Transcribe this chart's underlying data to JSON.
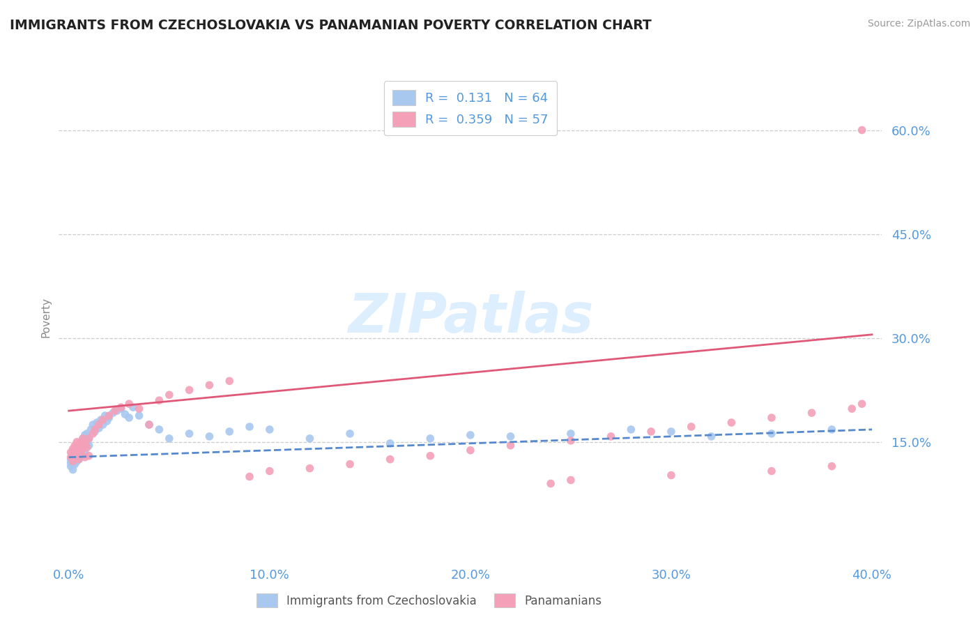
{
  "title": "IMMIGRANTS FROM CZECHOSLOVAKIA VS PANAMANIAN POVERTY CORRELATION CHART",
  "source": "Source: ZipAtlas.com",
  "ylabel": "Poverty",
  "xlabel": "",
  "xlim": [
    -0.005,
    0.405
  ],
  "ylim": [
    -0.02,
    0.68
  ],
  "yticks": [
    0.15,
    0.3,
    0.45,
    0.6
  ],
  "ytick_labels": [
    "15.0%",
    "30.0%",
    "45.0%",
    "60.0%"
  ],
  "xticks": [
    0.0,
    0.1,
    0.2,
    0.3,
    0.4
  ],
  "xtick_labels": [
    "0.0%",
    "10.0%",
    "20.0%",
    "30.0%",
    "40.0%"
  ],
  "series1_label": "Immigrants from Czechoslovakia",
  "series1_R": "0.131",
  "series1_N": "64",
  "series1_color": "#a8c8f0",
  "series1_line_color": "#5588cc",
  "series2_label": "Panamanians",
  "series2_R": "0.359",
  "series2_N": "57",
  "series2_color": "#f4a0b8",
  "series2_line_color": "#e05878",
  "background_color": "#ffffff",
  "grid_color": "#cccccc",
  "title_color": "#222222",
  "axis_color": "#5599dd",
  "watermark": "ZIPatlas",
  "watermark_color": "#ddeeff",
  "scatter1_x": [
    0.001,
    0.001,
    0.001,
    0.002,
    0.002,
    0.002,
    0.002,
    0.003,
    0.003,
    0.003,
    0.003,
    0.004,
    0.004,
    0.004,
    0.005,
    0.005,
    0.005,
    0.006,
    0.006,
    0.007,
    0.007,
    0.008,
    0.008,
    0.009,
    0.009,
    0.01,
    0.01,
    0.011,
    0.012,
    0.013,
    0.014,
    0.015,
    0.016,
    0.017,
    0.018,
    0.019,
    0.02,
    0.022,
    0.024,
    0.026,
    0.028,
    0.03,
    0.032,
    0.035,
    0.04,
    0.045,
    0.05,
    0.06,
    0.07,
    0.08,
    0.09,
    0.1,
    0.12,
    0.14,
    0.16,
    0.18,
    0.2,
    0.22,
    0.25,
    0.28,
    0.3,
    0.32,
    0.35,
    0.38
  ],
  "scatter1_y": [
    0.12,
    0.125,
    0.115,
    0.118,
    0.122,
    0.13,
    0.11,
    0.125,
    0.132,
    0.118,
    0.14,
    0.128,
    0.135,
    0.122,
    0.145,
    0.138,
    0.125,
    0.15,
    0.132,
    0.155,
    0.142,
    0.16,
    0.135,
    0.148,
    0.162,
    0.155,
    0.145,
    0.168,
    0.175,
    0.165,
    0.178,
    0.17,
    0.182,
    0.175,
    0.188,
    0.18,
    0.185,
    0.192,
    0.195,
    0.198,
    0.19,
    0.185,
    0.2,
    0.188,
    0.175,
    0.168,
    0.155,
    0.162,
    0.158,
    0.165,
    0.172,
    0.168,
    0.155,
    0.162,
    0.148,
    0.155,
    0.16,
    0.158,
    0.162,
    0.168,
    0.165,
    0.158,
    0.162,
    0.168
  ],
  "scatter2_x": [
    0.001,
    0.001,
    0.002,
    0.002,
    0.003,
    0.003,
    0.004,
    0.004,
    0.005,
    0.005,
    0.006,
    0.006,
    0.007,
    0.007,
    0.008,
    0.008,
    0.009,
    0.01,
    0.01,
    0.012,
    0.013,
    0.015,
    0.017,
    0.02,
    0.023,
    0.026,
    0.03,
    0.035,
    0.04,
    0.045,
    0.05,
    0.06,
    0.07,
    0.08,
    0.09,
    0.1,
    0.12,
    0.14,
    0.16,
    0.18,
    0.2,
    0.22,
    0.25,
    0.27,
    0.29,
    0.31,
    0.33,
    0.35,
    0.37,
    0.39,
    0.395,
    0.25,
    0.3,
    0.35,
    0.38,
    0.395,
    0.24
  ],
  "scatter2_y": [
    0.128,
    0.135,
    0.122,
    0.14,
    0.13,
    0.145,
    0.138,
    0.15,
    0.142,
    0.125,
    0.148,
    0.132,
    0.155,
    0.14,
    0.148,
    0.128,
    0.142,
    0.155,
    0.13,
    0.162,
    0.168,
    0.175,
    0.182,
    0.188,
    0.195,
    0.2,
    0.205,
    0.198,
    0.175,
    0.21,
    0.218,
    0.225,
    0.232,
    0.238,
    0.1,
    0.108,
    0.112,
    0.118,
    0.125,
    0.13,
    0.138,
    0.145,
    0.152,
    0.158,
    0.165,
    0.172,
    0.178,
    0.185,
    0.192,
    0.198,
    0.205,
    0.095,
    0.102,
    0.108,
    0.115,
    0.6,
    0.09
  ],
  "trend1_x": [
    0.0,
    0.4
  ],
  "trend1_y": [
    0.128,
    0.168
  ],
  "trend2_x": [
    0.0,
    0.4
  ],
  "trend2_y": [
    0.195,
    0.305
  ]
}
